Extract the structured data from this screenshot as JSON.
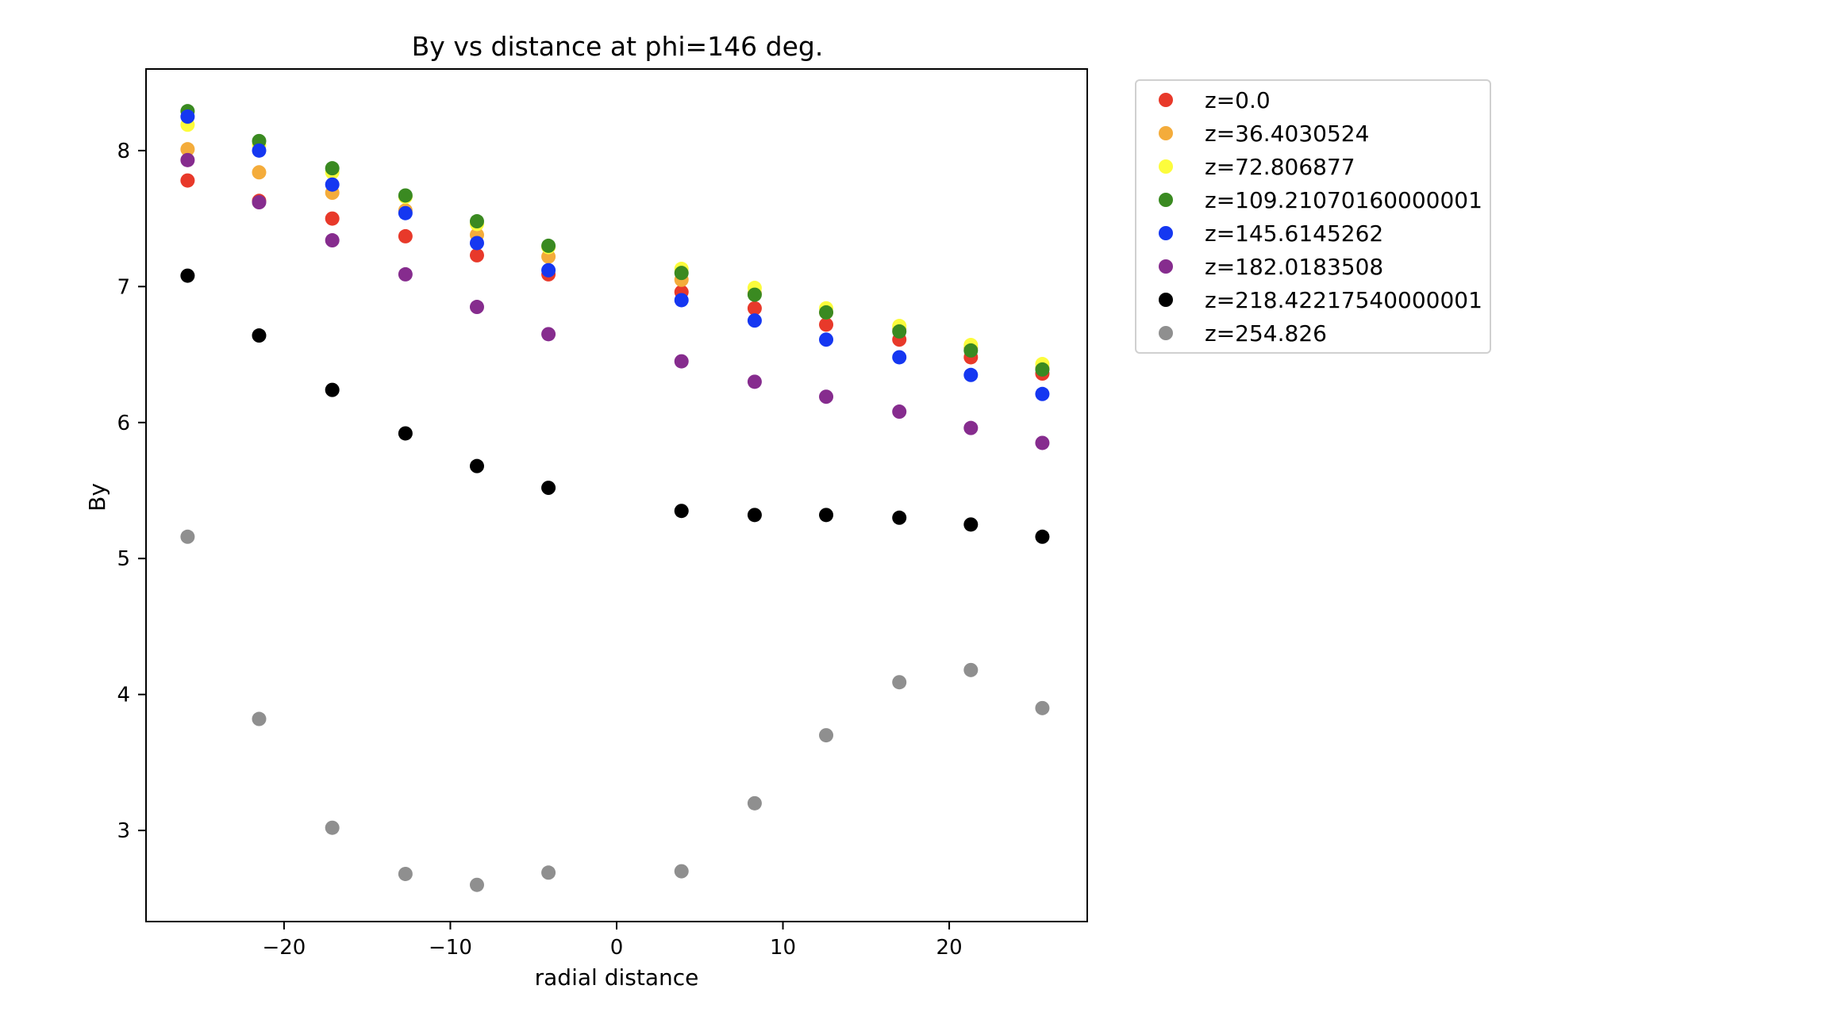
{
  "chart_data": {
    "type": "scatter",
    "title": "By vs distance at phi=146 deg.",
    "xlabel": "radial distance",
    "ylabel": "By",
    "xlim": [
      -28.3,
      28.3
    ],
    "ylim": [
      2.33,
      8.6
    ],
    "xticks": [
      -20,
      -10,
      0,
      10,
      20
    ],
    "xtick_labels": [
      "−20",
      "−10",
      "0",
      "10",
      "20"
    ],
    "yticks": [
      3,
      4,
      5,
      6,
      7,
      8
    ],
    "ytick_labels": [
      "3",
      "4",
      "5",
      "6",
      "7",
      "8"
    ],
    "grid": false,
    "legend_position": "outside-right-top",
    "x": [
      -25.8,
      -21.5,
      -17.1,
      -12.7,
      -8.4,
      -4.1,
      3.9,
      8.3,
      12.6,
      17.0,
      21.3,
      25.6
    ],
    "series": [
      {
        "name": "z=0.0",
        "color": "#e8392a",
        "values": [
          7.78,
          7.63,
          7.5,
          7.37,
          7.23,
          7.09,
          6.96,
          6.84,
          6.72,
          6.61,
          6.48,
          6.36
        ]
      },
      {
        "name": "z=36.4030524",
        "color": "#f4ac3b",
        "values": [
          8.01,
          7.84,
          7.69,
          7.56,
          7.38,
          7.22,
          7.05,
          6.95,
          6.81,
          6.69,
          6.55,
          6.4
        ]
      },
      {
        "name": "z=72.806877",
        "color": "#fcfc3c",
        "values": [
          8.19,
          8.04,
          7.84,
          7.66,
          7.46,
          7.29,
          7.13,
          6.99,
          6.84,
          6.71,
          6.57,
          6.43
        ]
      },
      {
        "name": "z=109.21070160000001",
        "color": "#3a8a21",
        "values": [
          8.29,
          8.07,
          7.87,
          7.67,
          7.48,
          7.3,
          7.1,
          6.94,
          6.81,
          6.67,
          6.53,
          6.39
        ]
      },
      {
        "name": "z=145.6145262",
        "color": "#1537f1",
        "values": [
          8.25,
          8.0,
          7.75,
          7.54,
          7.32,
          7.12,
          6.9,
          6.75,
          6.61,
          6.48,
          6.35,
          6.21
        ]
      },
      {
        "name": "z=182.0183508",
        "color": "#862c8e",
        "values": [
          7.93,
          7.62,
          7.34,
          7.09,
          6.85,
          6.65,
          6.45,
          6.3,
          6.19,
          6.08,
          5.96,
          5.85
        ]
      },
      {
        "name": "z=218.42217540000001",
        "color": "#000000",
        "values": [
          7.08,
          6.64,
          6.24,
          5.92,
          5.68,
          5.52,
          5.35,
          5.32,
          5.32,
          5.3,
          5.25,
          5.16
        ]
      },
      {
        "name": "z=254.826",
        "color": "#8f8f8f",
        "values": [
          5.16,
          3.82,
          3.02,
          2.68,
          2.6,
          2.69,
          2.7,
          3.2,
          3.7,
          4.09,
          4.18,
          3.9
        ]
      }
    ]
  }
}
